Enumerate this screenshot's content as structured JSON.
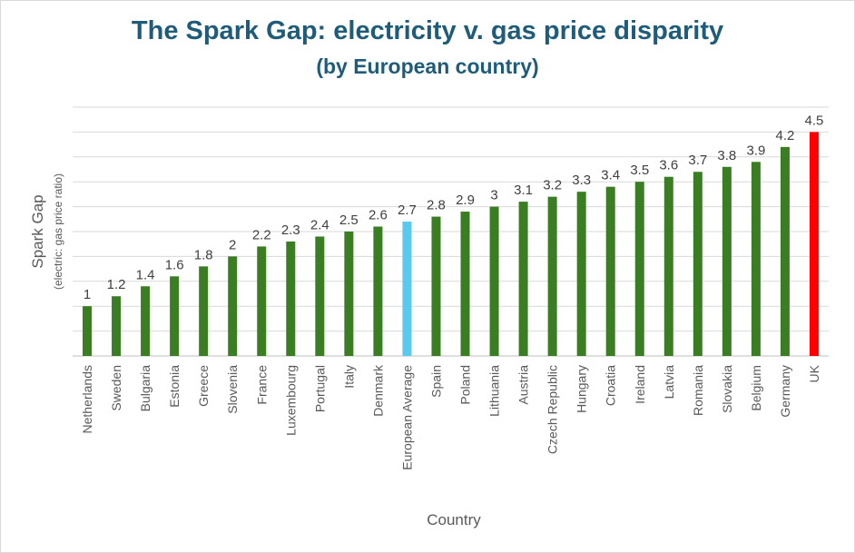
{
  "chart_data": {
    "type": "bar",
    "title": "The Spark Gap: electricity v. gas price disparity",
    "subtitle": "(by European country)",
    "xlabel": "Country",
    "ylabel": "Spark Gap",
    "ylabel_sub": "(electric: gas price ratio)",
    "ylim": [
      0,
      5
    ],
    "y_gridline_step": 0.5,
    "grid": true,
    "categories": [
      "Netherlands",
      "Sweden",
      "Bulgaria",
      "Estonia",
      "Greece",
      "Slovenia",
      "France",
      "Luxembourg",
      "Portugal",
      "Italy",
      "Denmark",
      "European Average",
      "Spain",
      "Poland",
      "Lithuania",
      "Austria",
      "Czech Republic",
      "Hungary",
      "Croatia",
      "Ireland",
      "Latvia",
      "Romania",
      "Slovakia",
      "Belgium",
      "Germany",
      "UK"
    ],
    "values": [
      1,
      1.2,
      1.4,
      1.6,
      1.8,
      2,
      2.2,
      2.3,
      2.4,
      2.5,
      2.6,
      2.7,
      2.8,
      2.9,
      3,
      3.1,
      3.2,
      3.3,
      3.4,
      3.5,
      3.6,
      3.7,
      3.8,
      3.9,
      4.2,
      4.5
    ],
    "data_labels": [
      "1",
      "1.2",
      "1.4",
      "1.6",
      "1.8",
      "2",
      "2.2",
      "2.3",
      "2.4",
      "2.5",
      "2.6",
      "2.7",
      "2.8",
      "2.9",
      "3",
      "3.1",
      "3.2",
      "3.3",
      "3.4",
      "3.5",
      "3.6",
      "3.7",
      "3.8",
      "3.9",
      "4.2",
      "4.5"
    ],
    "highlight": {
      "European Average": "#5bc8ee",
      "UK": "#ff0000"
    },
    "default_color": "#3a7d22"
  },
  "colors": {
    "title": "#1f5c7a",
    "axis_text": "#595959",
    "gridline": "#d9d9d9",
    "axis_line": "#bfbfbf"
  }
}
